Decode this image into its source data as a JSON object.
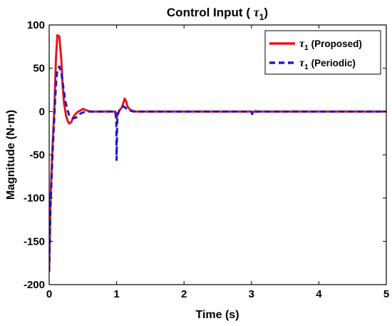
{
  "chart_data": {
    "type": "line",
    "title_text": "Control Input ( ",
    "title_symbol": "τ",
    "title_sub": "1",
    "title_close": ")",
    "xlabel": "Time (s)",
    "ylabel": "Magnitude (N·m)",
    "xlim": [
      0,
      5
    ],
    "ylim": [
      -200,
      100
    ],
    "xticks": [
      0,
      1,
      2,
      3,
      4,
      5
    ],
    "yticks": [
      100,
      50,
      0,
      -50,
      -100,
      -150,
      -200
    ],
    "grid": false,
    "legend_position": "top-right",
    "series": [
      {
        "name": "(Proposed)",
        "symbol": "τ",
        "sub": "1",
        "color": "#e8141c",
        "style": "solid",
        "x": [
          0,
          0.02,
          0.05,
          0.08,
          0.1,
          0.12,
          0.15,
          0.18,
          0.2,
          0.22,
          0.25,
          0.28,
          0.3,
          0.33,
          0.36,
          0.4,
          0.43,
          0.46,
          0.5,
          0.55,
          0.6,
          0.65,
          0.7,
          0.8,
          0.9,
          0.98,
          0.995,
          1.0,
          1.01,
          1.02,
          1.04,
          1.06,
          1.08,
          1.1,
          1.12,
          1.14,
          1.16,
          1.2,
          1.25,
          1.3,
          1.4,
          1.6,
          2.0,
          2.5,
          3.0,
          3.02,
          3.05,
          3.1,
          3.5,
          4.0,
          4.5,
          5.0
        ],
        "y": [
          -180,
          -100,
          -40,
          10,
          60,
          88,
          87,
          60,
          30,
          10,
          -5,
          -12,
          -14,
          -12,
          -6,
          -2,
          0,
          1,
          3,
          1.5,
          0,
          0,
          0,
          0,
          0,
          0,
          -2,
          -8,
          -5,
          -2,
          1,
          3,
          5,
          10,
          15,
          12,
          6,
          2,
          0.5,
          0,
          0,
          0,
          0,
          0,
          0,
          -1,
          0.5,
          0,
          0,
          0,
          0,
          0
        ]
      },
      {
        "name": "(Periodic)",
        "symbol": "τ",
        "sub": "1",
        "color": "#1a1ad0",
        "style": "dashed",
        "x": [
          0,
          0.02,
          0.05,
          0.08,
          0.1,
          0.12,
          0.15,
          0.18,
          0.21,
          0.24,
          0.27,
          0.3,
          0.35,
          0.4,
          0.45,
          0.5,
          0.55,
          0.6,
          0.7,
          0.8,
          0.9,
          0.98,
          0.995,
          1.0,
          1.005,
          1.01,
          1.02,
          1.04,
          1.06,
          1.08,
          1.1,
          1.12,
          1.15,
          1.2,
          1.25,
          1.3,
          1.4,
          1.6,
          2.0,
          2.5,
          3.0,
          3.01,
          3.03,
          3.06,
          3.1,
          3.5,
          4.0,
          4.5,
          5.0
        ],
        "y": [
          -185,
          -110,
          -50,
          0,
          30,
          48,
          52,
          45,
          28,
          12,
          2,
          -5,
          -8,
          -7,
          -3,
          -1,
          0,
          0,
          0,
          0,
          0,
          0,
          -10,
          -56,
          -30,
          -10,
          -3,
          1,
          3,
          4,
          6,
          5,
          3,
          1,
          0,
          0,
          0,
          0,
          0,
          0,
          0,
          -3,
          0.5,
          -0.5,
          0,
          0,
          0,
          0,
          0
        ]
      }
    ]
  }
}
